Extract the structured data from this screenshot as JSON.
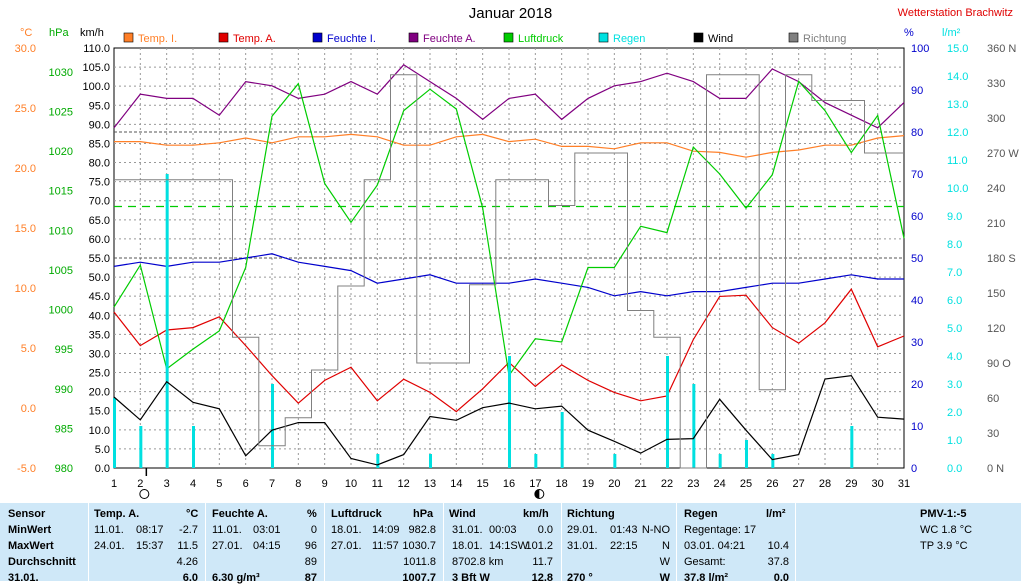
{
  "header": {
    "title": "Januar 2018",
    "station": "Wetterstation Brachwitz"
  },
  "colors": {
    "temp_i": "#ff7f27",
    "temp_a": "#e00000",
    "hum_i": "#0000cc",
    "hum_a": "#800080",
    "pressure": "#00cc00",
    "rain": "#00e0e0",
    "wind": "#000000",
    "direction": "#808080",
    "stats_bg": "#cfe8f8"
  },
  "chart_data": {
    "type": "line",
    "title": "Januar 2018",
    "legend_placement": "top",
    "grid": true,
    "x": [
      1,
      2,
      3,
      4,
      5,
      6,
      7,
      8,
      9,
      10,
      11,
      12,
      13,
      14,
      15,
      16,
      17,
      18,
      19,
      20,
      21,
      22,
      23,
      24,
      25,
      26,
      27,
      28,
      29,
      30,
      31
    ],
    "axes": {
      "temp": {
        "unit": "°C",
        "min": -5,
        "max": 30,
        "ticks": [
          "-5.0",
          "0.0",
          "5.0",
          "10.0",
          "15.0",
          "20.0",
          "25.0",
          "30.0"
        ]
      },
      "press": {
        "unit": "hPa",
        "min": 980,
        "max": 1033,
        "ticks": [
          "980",
          "985",
          "990",
          "995",
          "1000",
          "1005",
          "1010",
          "1015",
          "1020",
          "1025",
          "1030"
        ]
      },
      "wind": {
        "unit": "km/h",
        "min": 0,
        "max": 110,
        "ticks": [
          "0.0",
          "5.0",
          "10.0",
          "15.0",
          "20.0",
          "25.0",
          "30.0",
          "35.0",
          "40.0",
          "45.0",
          "50.0",
          "55.0",
          "60.0",
          "65.0",
          "70.0",
          "75.0",
          "80.0",
          "85.0",
          "90.0",
          "95.0",
          "100.0",
          "105.0",
          "110.0"
        ]
      },
      "hum": {
        "unit": "%",
        "min": 0,
        "max": 100,
        "ticks": [
          "0",
          "10",
          "20",
          "30",
          "40",
          "50",
          "60",
          "70",
          "80",
          "90",
          "100"
        ]
      },
      "rain": {
        "unit": "l/m²",
        "min": 0,
        "max": 15,
        "ticks": [
          "0.0",
          "1.0",
          "2.0",
          "3.0",
          "4.0",
          "5.0",
          "6.0",
          "7.0",
          "8.0",
          "9.0",
          "10.0",
          "11.0",
          "12.0",
          "13.0",
          "14.0",
          "15.0"
        ]
      },
      "dir": {
        "unit": "",
        "min": 0,
        "max": 360,
        "ticks": [
          "0 N",
          "30",
          "60",
          "90 O",
          "120",
          "150",
          "180 S",
          "210",
          "240",
          "270 W",
          "300",
          "330",
          "360 N"
        ]
      }
    },
    "dashed_reference": {
      "axis": "press",
      "value": 1013
    },
    "series": [
      {
        "name": "Temp. I.",
        "axis": "temp",
        "color": "#ff7f27",
        "type": "line",
        "values": [
          22.2,
          22.2,
          21.9,
          21.9,
          22.1,
          22.5,
          22.1,
          22.6,
          22.6,
          22.8,
          22.6,
          21.9,
          21.9,
          22.6,
          22.8,
          22.2,
          22.4,
          21.8,
          21.8,
          21.6,
          22.1,
          22.1,
          21.4,
          21.3,
          20.9,
          21.3,
          21.5,
          21.9,
          21.9,
          22.5,
          22.7
        ]
      },
      {
        "name": "Temp. A.",
        "axis": "temp",
        "color": "#e00000",
        "type": "line",
        "values": [
          8.0,
          5.2,
          6.5,
          6.7,
          7.6,
          5.2,
          2.7,
          0.4,
          2.3,
          3.4,
          0.6,
          2.4,
          1.3,
          -0.3,
          1.6,
          3.8,
          1.8,
          3.6,
          2.3,
          1.3,
          0.6,
          1.0,
          5.7,
          9.3,
          9.4,
          6.7,
          5.4,
          7.1,
          9.9,
          5.1,
          6.0
        ]
      },
      {
        "name": "Feuchte I.",
        "axis": "hum",
        "color": "#0000cc",
        "type": "line",
        "values": [
          48,
          49,
          48,
          49,
          49,
          50,
          51,
          49,
          48,
          47,
          44,
          45,
          46,
          44,
          44,
          44,
          45,
          44,
          43,
          41,
          42,
          41,
          42,
          42,
          43,
          44,
          44,
          45,
          46,
          45,
          45
        ]
      },
      {
        "name": "Feuchte A.",
        "axis": "hum",
        "color": "#800080",
        "type": "line",
        "values": [
          81,
          89,
          88,
          88,
          84,
          92,
          91,
          88,
          89,
          92,
          89,
          96,
          92,
          88,
          83,
          88,
          89,
          83,
          88,
          91,
          92,
          94,
          92,
          88,
          88,
          95,
          92,
          87,
          84,
          81,
          87
        ]
      },
      {
        "name": "Luftdruck",
        "axis": "press",
        "color": "#00cc00",
        "type": "line",
        "values": [
          1000.3,
          1005.6,
          992.5,
          995.0,
          997.3,
          1005.3,
          1024.4,
          1028.5,
          1015.9,
          1011.0,
          1015.7,
          1025.1,
          1027.8,
          1025.3,
          1012.8,
          991.7,
          996.3,
          995.9,
          1005.3,
          1005.3,
          1010.5,
          1009.7,
          1020.5,
          1017.1,
          1012.8,
          1017.0,
          1028.8,
          1025.1,
          1019.8,
          1024.5,
          1009.0
        ]
      },
      {
        "name": "Regen",
        "axis": "rain",
        "color": "#00e0e0",
        "type": "bar",
        "values": [
          2.5,
          1.5,
          10.5,
          1.5,
          0,
          0,
          3.0,
          0,
          0,
          0,
          0.5,
          0,
          0.5,
          0,
          0,
          4.0,
          0.5,
          2.0,
          0,
          0.5,
          0,
          4.0,
          3.0,
          0.5,
          1.0,
          0.5,
          0,
          0,
          1.5,
          0,
          0
        ]
      },
      {
        "name": "Wind",
        "axis": "wind",
        "color": "#000000",
        "type": "line",
        "values": [
          18.6,
          12.6,
          22.6,
          17.2,
          15.5,
          3.2,
          9.9,
          11.9,
          11.9,
          2.5,
          0.8,
          3.5,
          13.5,
          12.5,
          15.8,
          17.0,
          15.5,
          16.2,
          9.9,
          7.0,
          3.9,
          7.5,
          7.7,
          18.0,
          9.9,
          2.2,
          3.5,
          23.3,
          24.2,
          13.3,
          12.8
        ]
      },
      {
        "name": "Richtung",
        "axis": "dir",
        "color": "#808080",
        "type": "step",
        "values": [
          247,
          247,
          247,
          247,
          247,
          112,
          19,
          43,
          84,
          156,
          247,
          337,
          90,
          90,
          157,
          247,
          247,
          225,
          270,
          270,
          135,
          112,
          0,
          337,
          337,
          67,
          337,
          315,
          315,
          270,
          270
        ]
      }
    ],
    "x_markers": [
      {
        "x": 2,
        "symbol": "circle-open"
      },
      {
        "x": 17,
        "symbol": "circle-half"
      }
    ]
  },
  "stats": {
    "headers": {
      "sensor": "Sensor",
      "temp_a": "Temp. A.",
      "temp_a_unit": "°C",
      "feuchte": "Feuchte A.",
      "feuchte_unit": "%",
      "luftdruck": "Luftdruck",
      "luftdruck_unit": "hPa",
      "wind": "Wind",
      "wind_unit": "km/h",
      "richtung": "Richtung",
      "regen": "Regen",
      "regen_unit": "l/m²",
      "pmv": "PMV-1:-5"
    },
    "row_labels": [
      "MinWert",
      "MaxWert",
      "Durchschnitt",
      "31.01."
    ],
    "temp_a": [
      {
        "date": "11.01.",
        "time": "08:17",
        "val": "-2.7"
      },
      {
        "date": "24.01.",
        "time": "15:37",
        "val": "11.5"
      },
      {
        "date": "",
        "time": "",
        "val": "4.26"
      },
      {
        "date": "",
        "time": "",
        "val": "6.0"
      }
    ],
    "feuchte": [
      {
        "date": "11.01.",
        "time": "03:01",
        "val": "0"
      },
      {
        "date": "27.01.",
        "time": "04:15",
        "val": "96"
      },
      {
        "date": "",
        "time": "",
        "val": "89"
      },
      {
        "date": "6.30 g/m³",
        "time": "",
        "val": "87"
      }
    ],
    "luftdruck": [
      {
        "date": "18.01.",
        "time": "14:09",
        "val": "982.8"
      },
      {
        "date": "27.01.",
        "time": "11:57",
        "val": "1030.7"
      },
      {
        "date": "",
        "time": "",
        "val": "1011.8"
      },
      {
        "date": "",
        "time": "",
        "val": "1007.7"
      }
    ],
    "wind": [
      {
        "date": "31.01.",
        "time": "00:03",
        "val": "0.0"
      },
      {
        "date": "18.01.",
        "time": "14:1SW",
        "val": "101.2"
      },
      {
        "date": "8702.8 km",
        "time": "",
        "val": "11.7"
      },
      {
        "date": "3 Bft W",
        "time": "",
        "val": "12.8"
      }
    ],
    "richtung": [
      {
        "date": "29.01.",
        "time": "01:43",
        "val": "N-NO"
      },
      {
        "date": "31.01.",
        "time": "22:15",
        "val": "N"
      },
      {
        "date": "",
        "time": "",
        "val": "W"
      },
      {
        "date": "270 °",
        "time": "",
        "val": "W"
      }
    ],
    "regen": [
      {
        "label": "Regentage: 17",
        "val": ""
      },
      {
        "label": "03.01.  04:21",
        "val": "10.4"
      },
      {
        "label": "Gesamt:",
        "val": "37.8"
      },
      {
        "label": "37.8 l/m²",
        "val": "0.0"
      }
    ],
    "pmv": [
      "WC 1.8 °C",
      "TP 3.9 °C"
    ]
  }
}
